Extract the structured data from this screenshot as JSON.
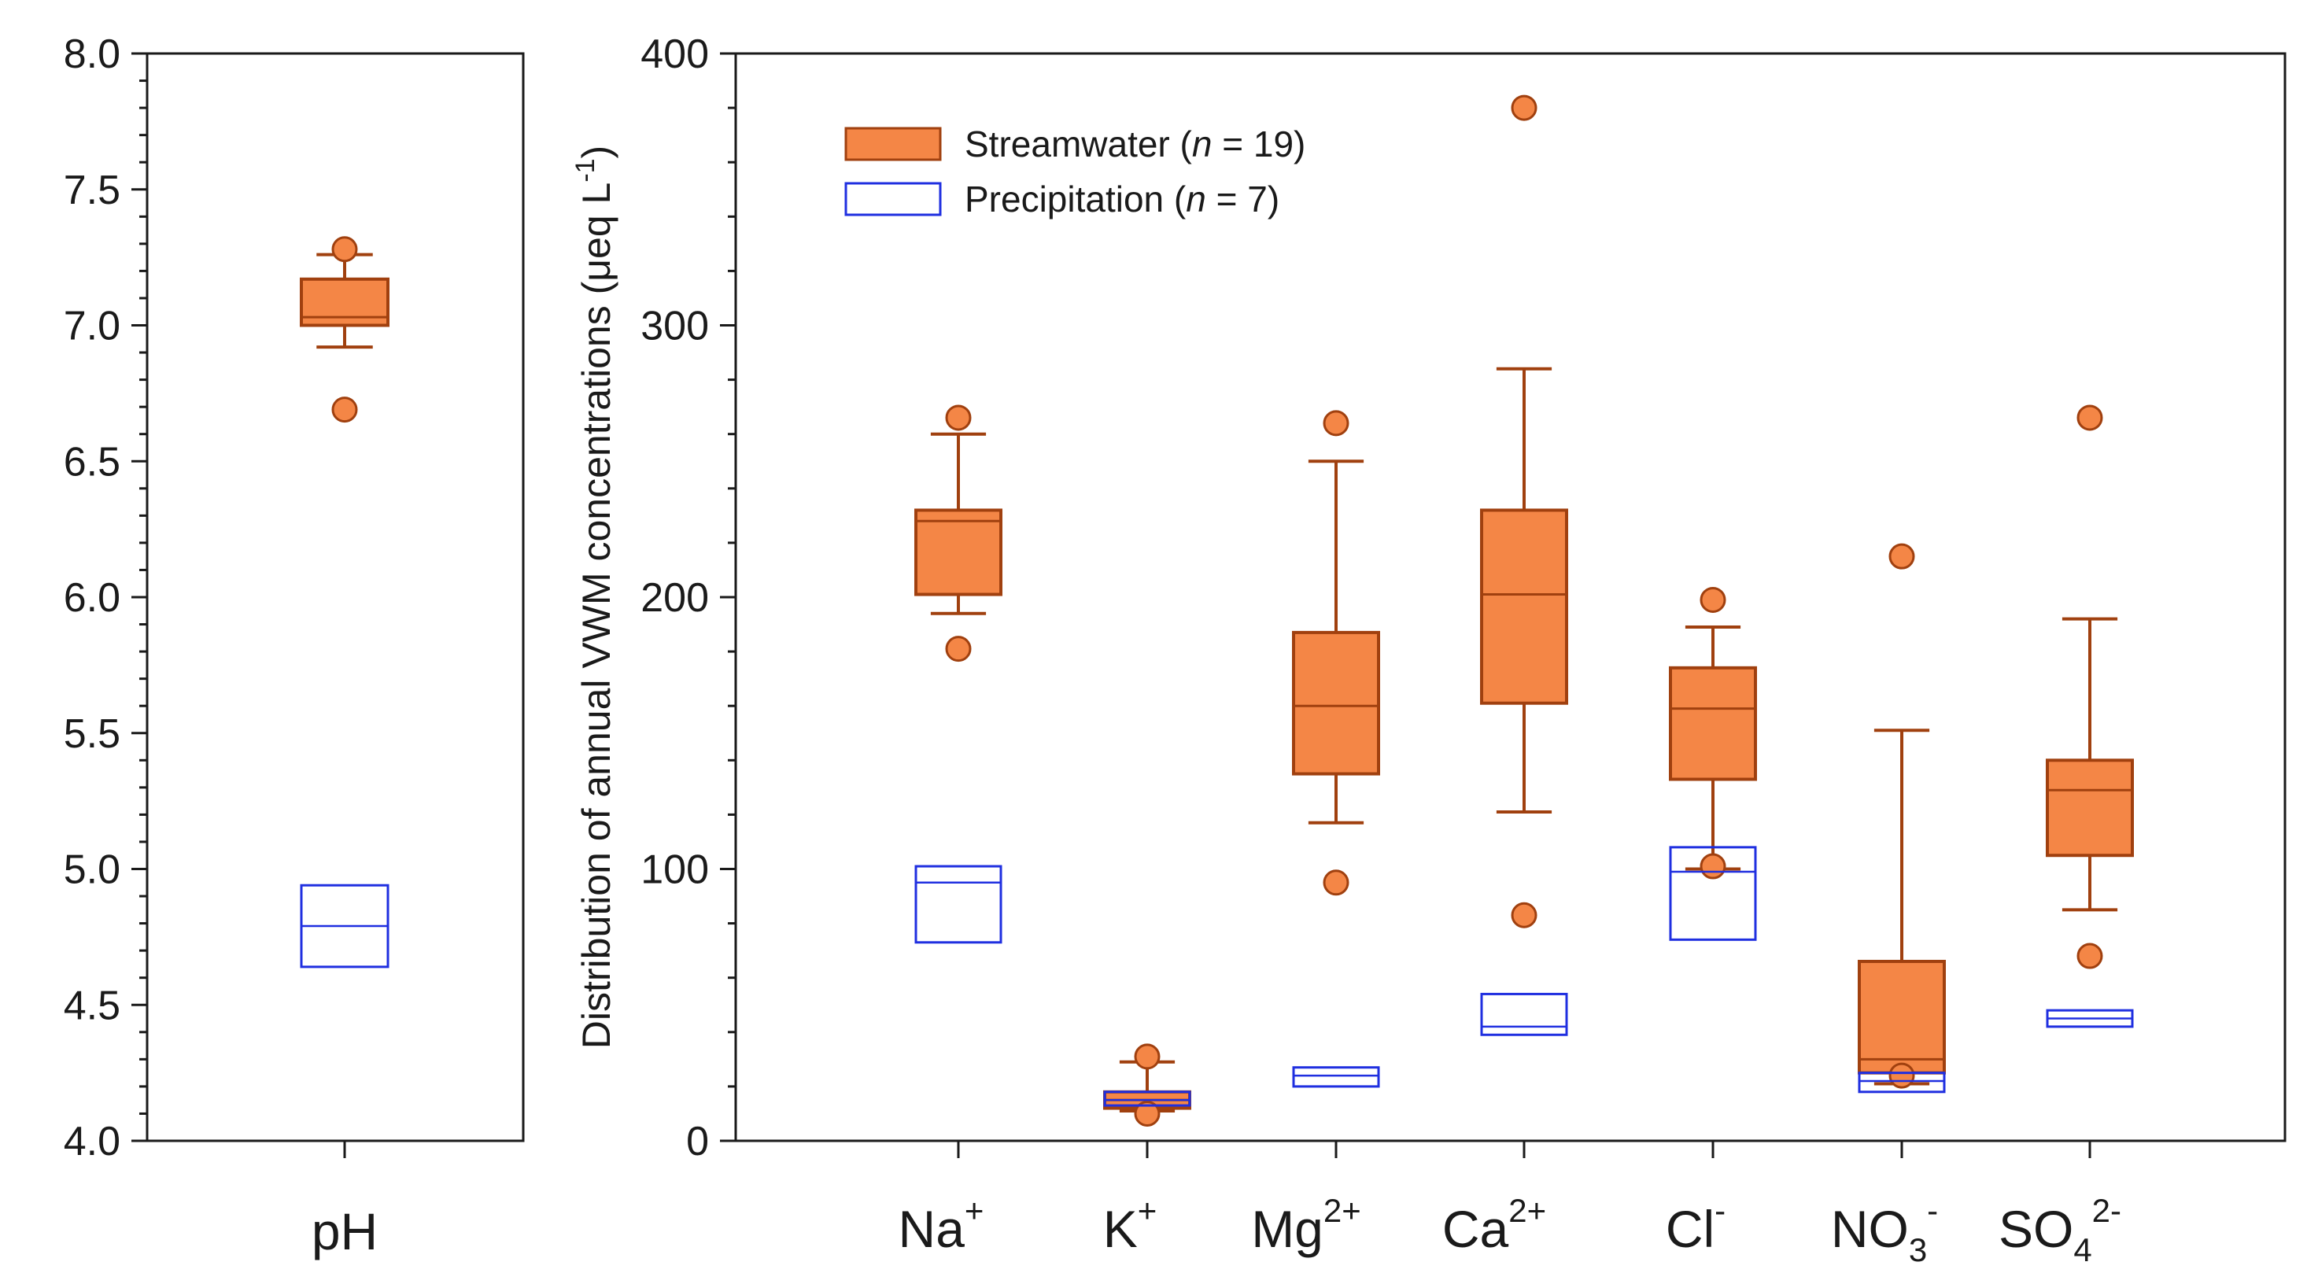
{
  "colors": {
    "stream_fill": "#F48646",
    "stream_stroke": "#A0400F",
    "precip_stroke": "#1F2FE0",
    "axis": "#1a1a1a"
  },
  "chart_data": [
    {
      "type": "box",
      "panel": "pH",
      "categories": [
        "pH"
      ],
      "ylim": [
        4.0,
        8.0
      ],
      "yticks": [
        "4.0",
        "4.5",
        "5.0",
        "5.5",
        "6.0",
        "6.5",
        "7.0",
        "7.5",
        "8.0"
      ],
      "series": [
        {
          "name": "Streamwater (n = 19)",
          "boxes": [
            {
              "q1": 7.0,
              "median": 7.03,
              "q3": 7.17,
              "whisker_low": 6.92,
              "whisker_high": 7.26,
              "outliers": [
                7.28,
                6.69
              ]
            }
          ]
        },
        {
          "name": "Precipitation (n = 7)",
          "boxes": [
            {
              "q1": 4.64,
              "median": 4.79,
              "q3": 4.94
            }
          ]
        }
      ]
    },
    {
      "type": "box",
      "panel": "ions",
      "ylabel": "Distribution of annual VWM concentrations (μeq L",
      "ylabel_sup": "-1",
      "ylabel_close": ")",
      "ylim": [
        0,
        400
      ],
      "yticks": [
        "0",
        "100",
        "200",
        "300",
        "400"
      ],
      "categories": [
        {
          "base": "Na",
          "sup": "+",
          "sub": ""
        },
        {
          "base": "K",
          "sup": "+",
          "sub": ""
        },
        {
          "base": "Mg",
          "sup": "2+",
          "sub": ""
        },
        {
          "base": "Ca",
          "sup": "2+",
          "sub": ""
        },
        {
          "base": "Cl",
          "sup": "-",
          "sub": ""
        },
        {
          "base": "NO",
          "sup": "-",
          "sub": "3"
        },
        {
          "base": "SO",
          "sup": "2-",
          "sub": "4"
        }
      ],
      "legend": {
        "position": "top-left",
        "items": [
          {
            "label_pre": "Streamwater (",
            "label_n": "n",
            "label_post": " = 19)",
            "style": "filled"
          },
          {
            "label_pre": "Precipitation (",
            "label_n": "n",
            "label_post": " = 7)",
            "style": "outline"
          }
        ]
      },
      "series": [
        {
          "name": "Streamwater (n = 19)",
          "boxes": [
            {
              "q1": 201,
              "median": 228,
              "q3": 232,
              "whisker_low": 194,
              "whisker_high": 260,
              "outliers": [
                266,
                181
              ]
            },
            {
              "q1": 12,
              "median": 15,
              "q3": 18,
              "whisker_low": 11,
              "whisker_high": 29,
              "outliers": [
                31,
                10
              ]
            },
            {
              "q1": 135,
              "median": 160,
              "q3": 187,
              "whisker_low": 117,
              "whisker_high": 250,
              "outliers": [
                264,
                95
              ]
            },
            {
              "q1": 161,
              "median": 201,
              "q3": 232,
              "whisker_low": 121,
              "whisker_high": 284,
              "outliers": [
                380,
                83
              ]
            },
            {
              "q1": 133,
              "median": 159,
              "q3": 174,
              "whisker_low": 100,
              "whisker_high": 189,
              "outliers": [
                199,
                101
              ]
            },
            {
              "q1": 25,
              "median": 30,
              "q3": 66,
              "whisker_low": 21,
              "whisker_high": 151,
              "outliers": [
                215,
                24
              ]
            },
            {
              "q1": 105,
              "median": 129,
              "q3": 140,
              "whisker_low": 85,
              "whisker_high": 192,
              "outliers": [
                266,
                68
              ]
            }
          ]
        },
        {
          "name": "Precipitation (n = 7)",
          "boxes": [
            {
              "q1": 73,
              "median": 95,
              "q3": 101
            },
            {
              "q1": 13,
              "median": 15,
              "q3": 18
            },
            {
              "q1": 20,
              "median": 24,
              "q3": 27
            },
            {
              "q1": 39,
              "median": 42,
              "q3": 54
            },
            {
              "q1": 74,
              "median": 99,
              "q3": 108
            },
            {
              "q1": 18,
              "median": 22,
              "q3": 25
            },
            {
              "q1": 42,
              "median": 45,
              "q3": 48
            }
          ]
        }
      ]
    }
  ]
}
